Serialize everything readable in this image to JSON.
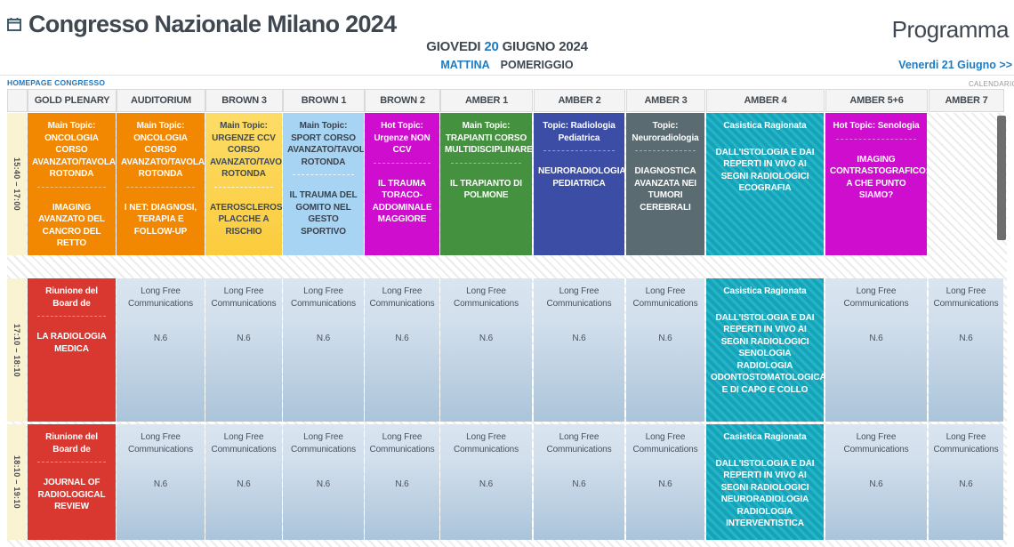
{
  "header": {
    "title": "Congresso Nazionale Milano 2024",
    "programma": "Programma",
    "calendar_icon": "calendar-icon"
  },
  "dateline": {
    "prefix": "GIOVEDI",
    "day": "20",
    "suffix": "GIUGNO 2024"
  },
  "tabs": {
    "morning": "MATTINA",
    "afternoon": "POMERIGGIO",
    "selected": "MATTINA"
  },
  "nav": {
    "next_day": "Venerdi 21 Giugno >>",
    "homepage": "HOMEPAGE CONGRESSO",
    "calendar": "CALENDARIO"
  },
  "palette": {
    "accent_blue": "#1E7BC2",
    "title_dark": "#3F4751",
    "orange": "#F28802",
    "yellow": "#FCD44C",
    "lightblue": "#A8D4F3",
    "magenta": "#CE0DCE",
    "green": "#44913F",
    "indigo": "#3B4DA5",
    "slate": "#5B6B72",
    "teal": "#14A3B8",
    "red": "#D93831",
    "steel": "#C4D6E6",
    "time_column": "#FAF3D2"
  },
  "grid": {
    "columns": [
      {
        "label": "GOLD PLENARY"
      },
      {
        "label": "AUDITORIUM"
      },
      {
        "label": "BROWN 3"
      },
      {
        "label": "BROWN 1"
      },
      {
        "label": "BROWN 2"
      },
      {
        "label": "AMBER 1"
      },
      {
        "label": "AMBER 2"
      },
      {
        "label": "AMBER 3"
      },
      {
        "label": "AMBER 4"
      },
      {
        "label": "AMBER 5+6"
      },
      {
        "label": "AMBER 7"
      }
    ],
    "rows": [
      {
        "time": "15:40 – 17:00",
        "cells": [
          {
            "style": "orange",
            "title": "Main Topic: ONCOLOGIA CORSO AVANZATO/TAVOLA ROTONDA",
            "subtitle": "IMAGING AVANZATO DEL CANCRO DEL RETTO",
            "sep": true
          },
          {
            "style": "orange",
            "title": "Main Topic: ONCOLOGIA CORSO AVANZATO/TAVOLA ROTONDA",
            "subtitle": "I NET: DIAGNOSI, TERAPIA E FOLLOW-UP",
            "sep": true
          },
          {
            "style": "yellow",
            "title": "Main Topic: URGENZE CCV CORSO AVANZATO/TAVOLA ROTONDA",
            "subtitle": "ATEROSCLEROSI: PLACCHE A RISCHIO",
            "sep": true
          },
          {
            "style": "lightblue",
            "title": "Main Topic: SPORT CORSO AVANZATO/TAVOLA ROTONDA",
            "subtitle": "IL TRAUMA DEL GOMITO NEL GESTO SPORTIVO",
            "sep": true
          },
          {
            "style": "magenta",
            "title": "Hot Topic: Urgenze NON CCV",
            "subtitle": "IL TRAUMA TORACO-ADDOMINALE MAGGIORE",
            "sep": true
          },
          {
            "style": "green",
            "title": "Main Topic: TRAPIANTI CORSO MULTIDISCIPLINARE",
            "subtitle": "IL TRAPIANTO DI POLMONE",
            "sep": true
          },
          {
            "style": "indigo",
            "title": "Topic: Radiologia Pediatrica",
            "subtitle": "NEURORADIOLOGIA PEDIATRICA",
            "sep": true
          },
          {
            "style": "slate",
            "title": "Topic: Neuroradiologia",
            "subtitle": "DIAGNOSTICA AVANZATA NEI TUMORI CEREBRALI",
            "sep": true
          },
          {
            "style": "tealhatch",
            "title": "Casistica Ragionata",
            "subtitle": "DALL'ISTOLOGIA E DAI REPERTI IN VIVO AI SEGNI RADIOLOGICI ECOGRAFIA",
            "sep": false
          },
          {
            "style": "magenta",
            "title": "Hot Topic: Senologia",
            "subtitle": "IMAGING CONTRASTOGRAFICO: A CHE PUNTO SIAMO?",
            "sep": true
          },
          null
        ]
      },
      {
        "time": "17:10 – 18:10",
        "cells": [
          {
            "style": "red",
            "title": "Riunione del Board de",
            "subtitle": "LA RADIOLOGIA MEDICA",
            "sep": true
          },
          {
            "style": "steel",
            "title": "Long Free Communications",
            "subtitle": "N.6",
            "sep": false
          },
          {
            "style": "steel",
            "title": "Long Free Communications",
            "subtitle": "N.6",
            "sep": false
          },
          {
            "style": "steel",
            "title": "Long Free Communications",
            "subtitle": "N.6",
            "sep": false
          },
          {
            "style": "steel",
            "title": "Long Free Communications",
            "subtitle": "N.6",
            "sep": false
          },
          {
            "style": "steel",
            "title": "Long Free Communications",
            "subtitle": "N.6",
            "sep": false
          },
          {
            "style": "steel",
            "title": "Long Free Communications",
            "subtitle": "N.6",
            "sep": false
          },
          {
            "style": "steel",
            "title": "Long Free Communications",
            "subtitle": "N.6",
            "sep": false
          },
          {
            "style": "tealhatch",
            "title": "Casistica Ragionata",
            "subtitle": "DALL'ISTOLOGIA E DAI REPERTI IN VIVO AI SEGNI RADIOLOGICI SENOLOGIA RADIOLOGIA ODONTOSTOMATOLOGICA E DI CAPO E COLLO",
            "sep": false
          },
          {
            "style": "steel",
            "title": "Long Free Communications",
            "subtitle": "N.6",
            "sep": false
          },
          {
            "style": "steel",
            "title": "Long Free Communications",
            "subtitle": "N.6",
            "sep": false
          }
        ]
      },
      {
        "time": "18:10 – 19:10",
        "cells": [
          {
            "style": "red",
            "title": "Riunione del Board de",
            "subtitle": "JOURNAL OF RADIOLOGICAL REVIEW",
            "sep": true
          },
          {
            "style": "steel",
            "title": "Long Free Communications",
            "subtitle": "N.6",
            "sep": false
          },
          {
            "style": "steel",
            "title": "Long Free Communications",
            "subtitle": "N.6",
            "sep": false
          },
          {
            "style": "steel",
            "title": "Long Free Communications",
            "subtitle": "N.6",
            "sep": false
          },
          {
            "style": "steel",
            "title": "Long Free Communications",
            "subtitle": "N.6",
            "sep": false
          },
          {
            "style": "steel",
            "title": "Long Free Communications",
            "subtitle": "N.6",
            "sep": false
          },
          {
            "style": "steel",
            "title": "Long Free Communications",
            "subtitle": "N.6",
            "sep": false
          },
          {
            "style": "steel",
            "title": "Long Free Communications",
            "subtitle": "N.6",
            "sep": false
          },
          {
            "style": "tealhatch",
            "title": "Casistica Ragionata",
            "subtitle": "DALL'ISTOLOGIA E DAI REPERTI IN VIVO AI SEGNI RADIOLOGICI NEURORADIOLOGIA RADIOLOGIA INTERVENTISTICA",
            "sep": false
          },
          {
            "style": "steel",
            "title": "Long Free Communications",
            "subtitle": "N.6",
            "sep": false
          },
          {
            "style": "steel",
            "title": "Long Free Communications",
            "subtitle": "N.6",
            "sep": false
          }
        ]
      }
    ]
  }
}
